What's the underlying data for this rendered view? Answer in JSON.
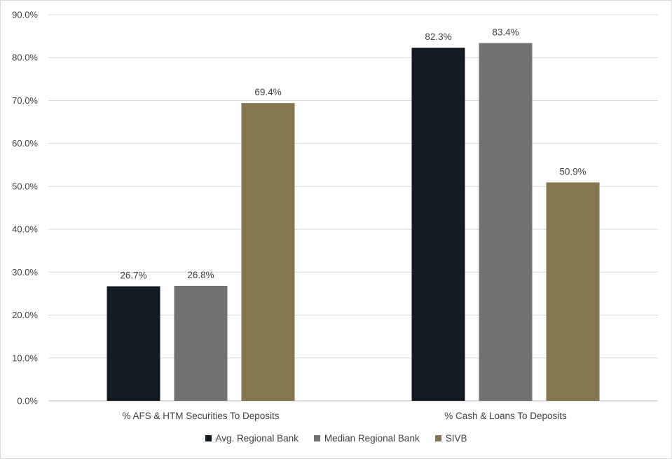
{
  "chart_data": {
    "type": "bar",
    "categories": [
      "% AFS & HTM Securities To Deposits",
      "% Cash & Loans To Deposits"
    ],
    "series": [
      {
        "name": "Avg. Regional Bank",
        "values": [
          26.7,
          82.3
        ],
        "color": "#131a21"
      },
      {
        "name": "Median Regional Bank",
        "values": [
          26.8,
          83.4
        ],
        "color": "#717171"
      },
      {
        "name": "SIVB",
        "values": [
          69.4,
          50.9
        ],
        "color": "#857650"
      }
    ],
    "data_labels": [
      [
        "26.7%",
        "82.3%"
      ],
      [
        "26.8%",
        "83.4%"
      ],
      [
        "69.4%",
        "50.9%"
      ]
    ],
    "y_ticks": [
      "0.0%",
      "10.0%",
      "20.0%",
      "30.0%",
      "40.0%",
      "50.0%",
      "60.0%",
      "70.0%",
      "80.0%",
      "90.0%"
    ],
    "ylim": [
      0,
      90
    ],
    "grid": true,
    "legend_position": "bottom",
    "title": "",
    "xlabel": "",
    "ylabel": ""
  }
}
